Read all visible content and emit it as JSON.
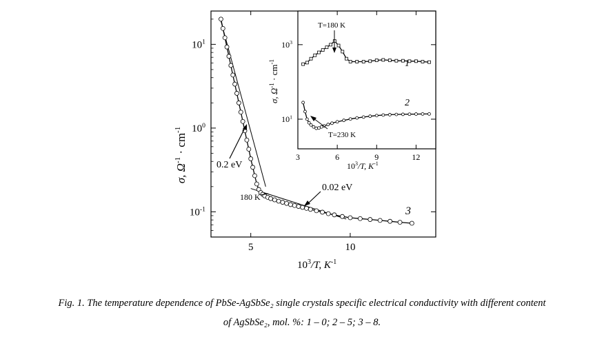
{
  "chart_data": [
    {
      "type": "scatter",
      "xlabel_base": "10",
      "xlabel_exp": "3",
      "xlabel_rest": "/T, K",
      "xlabel_unit_exp": "-1",
      "ylabel_main": "σ, Ω",
      "ylabel_exp1": "-1",
      "ylabel_mid": " · cm",
      "ylabel_exp2": "-1",
      "xlim": [
        3.0,
        14.3
      ],
      "ylim": [
        0.05,
        25
      ],
      "yscale": "log",
      "x_ticks": [
        {
          "value": 5,
          "label": "5"
        },
        {
          "value": 10,
          "label": "10"
        }
      ],
      "y_ticks": [
        {
          "value": 0.1,
          "base": "10",
          "exp": "-1"
        },
        {
          "value": 1,
          "base": "10",
          "exp": "0"
        },
        {
          "value": 10,
          "base": "10",
          "exp": "1"
        }
      ],
      "series": [
        {
          "name": "3",
          "x": [
            3.5,
            3.6,
            3.7,
            3.8,
            3.9,
            4.0,
            4.1,
            4.2,
            4.3,
            4.4,
            4.5,
            4.6,
            4.7,
            4.8,
            4.9,
            5.0,
            5.1,
            5.2,
            5.3,
            5.4,
            5.5,
            5.6,
            5.7,
            5.85,
            6.0,
            6.2,
            6.4,
            6.6,
            6.8,
            7.0,
            7.2,
            7.4,
            7.6,
            7.8,
            8.0,
            8.3,
            8.6,
            8.9,
            9.2,
            9.6,
            10.0,
            10.5,
            11.0,
            11.5,
            12.0,
            12.5,
            13.1
          ],
          "y": [
            20.0,
            15.5,
            12.0,
            9.3,
            7.2,
            5.6,
            4.3,
            3.35,
            2.6,
            2.0,
            1.55,
            1.2,
            0.93,
            0.72,
            0.56,
            0.43,
            0.34,
            0.27,
            0.215,
            0.185,
            0.17,
            0.162,
            0.155,
            0.149,
            0.144,
            0.139,
            0.134,
            0.13,
            0.126,
            0.122,
            0.119,
            0.116,
            0.113,
            0.11,
            0.107,
            0.103,
            0.099,
            0.095,
            0.092,
            0.088,
            0.085,
            0.083,
            0.081,
            0.079,
            0.077,
            0.075,
            0.073
          ]
        }
      ],
      "series_label": "3",
      "annotations": [
        {
          "text": "0.2 eV"
        },
        {
          "text": "0.02 eV"
        },
        {
          "text": "180 K"
        }
      ]
    },
    {
      "type": "scatter",
      "xlabel_base": "10",
      "xlabel_exp": "3",
      "xlabel_rest": "/T, K",
      "xlabel_unit_exp": "-1",
      "ylabel_main": "σ, Ω",
      "ylabel_exp1": "-1",
      "ylabel_mid": " · cm",
      "ylabel_exp2": "-1",
      "xlim": [
        3.0,
        13.5
      ],
      "ylim": [
        1.6,
        8000
      ],
      "yscale": "log",
      "x_ticks": [
        {
          "value": 3,
          "label": "3"
        },
        {
          "value": 6,
          "label": "6"
        },
        {
          "value": 9,
          "label": "9"
        },
        {
          "value": 12,
          "label": "12"
        }
      ],
      "y_ticks": [
        {
          "value": 10,
          "base": "10",
          "exp": "1"
        },
        {
          "value": 1000,
          "base": "10",
          "exp": "3"
        }
      ],
      "series": [
        {
          "name": "1",
          "x": [
            3.4,
            3.7,
            4.0,
            4.3,
            4.6,
            4.9,
            5.2,
            5.5,
            5.8,
            6.1,
            6.4,
            6.7,
            7.0,
            7.5,
            8.0,
            8.5,
            9.0,
            9.5,
            10.0,
            10.5,
            11.0,
            11.5,
            12.0,
            12.5,
            13.0
          ],
          "y": [
            300,
            330,
            420,
            520,
            620,
            720,
            850,
            1000,
            1250,
            950,
            650,
            420,
            350,
            350,
            350,
            360,
            380,
            390,
            380,
            370,
            370,
            360,
            360,
            350,
            340
          ]
        },
        {
          "name": "2",
          "x": [
            3.4,
            3.55,
            3.7,
            3.85,
            4.0,
            4.2,
            4.4,
            4.6,
            4.8,
            5.0,
            5.3,
            5.6,
            6.0,
            6.5,
            7.0,
            7.5,
            8.0,
            8.5,
            9.0,
            9.5,
            10.0,
            10.5,
            11.0,
            11.5,
            12.0,
            12.5,
            13.0
          ],
          "y": [
            28,
            16,
            10,
            8.0,
            7.0,
            6.2,
            5.7,
            5.8,
            6.2,
            6.6,
            7.2,
            7.8,
            8.5,
            9.3,
            10.1,
            10.8,
            11.4,
            12.0,
            12.5,
            12.9,
            13.2,
            13.4,
            13.5,
            13.6,
            13.7,
            13.8,
            13.8
          ]
        }
      ],
      "series_labels": [
        "1",
        "2"
      ],
      "annotations": [
        {
          "text": "T=180 K"
        },
        {
          "text": "T=230 K"
        }
      ]
    }
  ],
  "caption": {
    "line1": "Fig. 1. The temperature dependence of PbSe-AgSbSe₂ single crystals specific electrical conductivity with different content",
    "line2": "of AgSbSe₂, mol. %: 1 – 0; 2 – 5; 3 – 8."
  }
}
